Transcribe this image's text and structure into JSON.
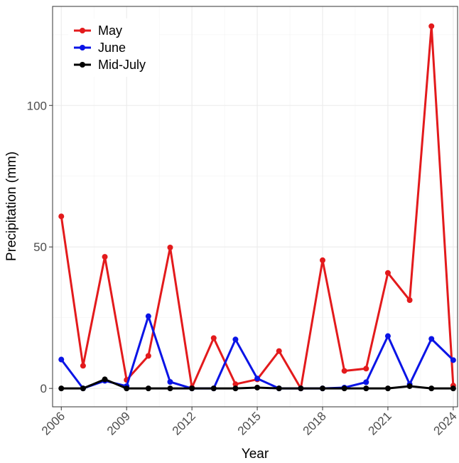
{
  "chart_data": {
    "type": "line",
    "title": "",
    "xlabel": "Year",
    "ylabel": "Precipitation (mm)",
    "x": [
      2006,
      2007,
      2008,
      2009,
      2010,
      2011,
      2012,
      2013,
      2014,
      2015,
      2016,
      2017,
      2018,
      2019,
      2020,
      2021,
      2022,
      2023,
      2024
    ],
    "xlim": [
      2005.6,
      2024.2
    ],
    "ylim": [
      -6.5,
      135
    ],
    "xticks": [
      2006,
      2009,
      2012,
      2015,
      2018,
      2021,
      2024
    ],
    "xtick_labels": [
      "2006",
      "2009",
      "2012",
      "2015",
      "2018",
      "2021",
      "2024"
    ],
    "yticks": [
      0,
      50,
      100
    ],
    "ytick_labels": [
      "0",
      "50",
      "100"
    ],
    "grid": true,
    "legend_position": "top-left",
    "series": [
      {
        "name": "May",
        "color": "#e31a1c",
        "values": [
          60.8,
          8.0,
          46.5,
          3.0,
          11.5,
          49.8,
          0.3,
          17.8,
          1.5,
          3.2,
          13.2,
          0.0,
          45.3,
          6.2,
          7.0,
          40.8,
          31.2,
          128.0,
          1.0
        ]
      },
      {
        "name": "June",
        "color": "#0a14e6",
        "values": [
          10.2,
          0.0,
          2.7,
          0.8,
          25.5,
          2.3,
          0.0,
          0.0,
          17.3,
          3.5,
          0.0,
          0.0,
          0.0,
          0.3,
          2.2,
          18.5,
          1.5,
          17.5,
          10.0
        ]
      },
      {
        "name": "Mid-July",
        "color": "#000000",
        "values": [
          0.0,
          0.0,
          3.2,
          0.0,
          0.0,
          0.0,
          0.0,
          0.0,
          0.0,
          0.3,
          0.0,
          0.0,
          0.0,
          0.0,
          0.0,
          0.0,
          0.8,
          0.0,
          0.0
        ]
      }
    ]
  }
}
